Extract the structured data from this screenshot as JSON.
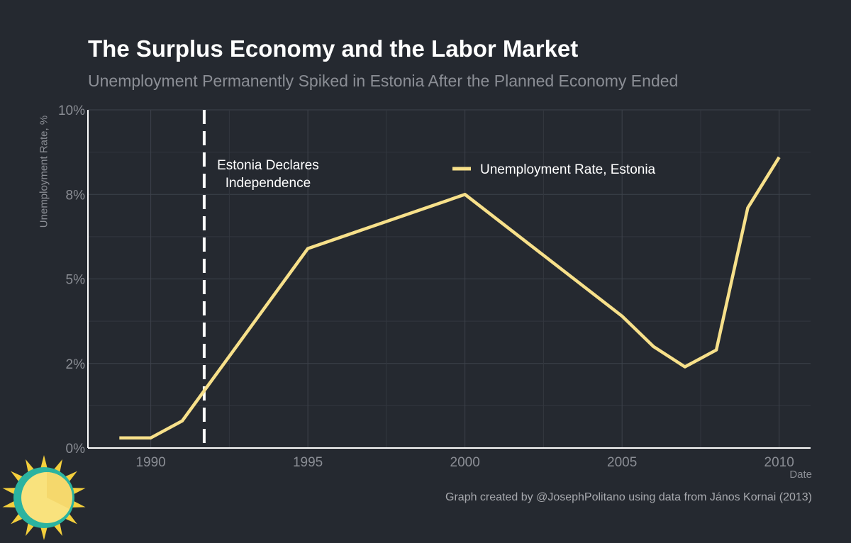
{
  "chart_data": {
    "type": "line",
    "title": "The Surplus Economy and the Labor Market",
    "subtitle": "Unemployment Permanently Spiked in Estonia After the Planned Economy Ended",
    "xlabel": "Date",
    "ylabel": "Unemployment Rate, %",
    "xlim": [
      1988,
      2011
    ],
    "ylim": [
      0,
      10
    ],
    "x_ticks": [
      1990,
      1995,
      2000,
      2005,
      2010
    ],
    "y_ticks": [
      0,
      2.5,
      5,
      7.5,
      10
    ],
    "y_tick_labels": [
      "0%",
      "2%",
      "5%",
      "8%",
      "10%"
    ],
    "grid": true,
    "legend_position": "top-right",
    "series": [
      {
        "name": "Unemployment Rate, Estonia",
        "color": "#f7e08a",
        "x": [
          1989,
          1990,
          1991,
          1995,
          2000,
          2005,
          2006,
          2007,
          2008,
          2009,
          2010
        ],
        "y": [
          0.3,
          0.3,
          0.8,
          5.9,
          7.5,
          3.9,
          3.0,
          2.4,
          2.9,
          7.1,
          8.6
        ]
      }
    ],
    "annotations": [
      {
        "type": "vline",
        "x": 1991.7,
        "style": "dashed",
        "color": "#ffffff",
        "label": [
          "Estonia Declares",
          "Independence"
        ]
      }
    ]
  },
  "credit": "Graph created by @JosephPolitano using data from János Kornai (2013)",
  "logo": {
    "name": "sun-logo",
    "colors": {
      "ring": "#2bb3a0",
      "face": "#f9e27d",
      "rays": "#f4cf3c"
    }
  }
}
